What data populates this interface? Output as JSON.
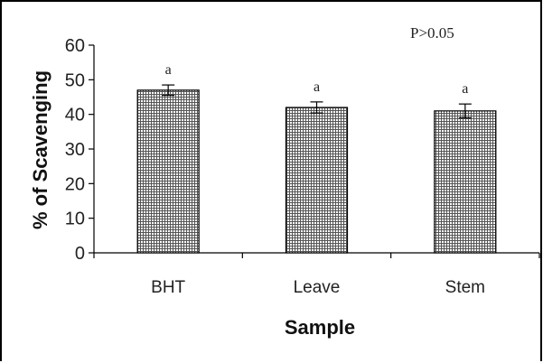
{
  "chart_data": {
    "type": "bar",
    "categories": [
      "BHT",
      "Leave",
      "Stem"
    ],
    "values": [
      47,
      42,
      41
    ],
    "errors": [
      1.5,
      1.6,
      2.0
    ],
    "significance_labels": [
      "a",
      "a",
      "a"
    ],
    "annotation": "P>0.05",
    "xlabel": "Sample",
    "ylabel": "% of Scavenging",
    "ylim": [
      0,
      60
    ],
    "yticks": [
      0,
      10,
      20,
      30,
      40,
      50,
      60
    ],
    "grid": false,
    "legend": "none",
    "bar_pattern": "crosshatch"
  }
}
